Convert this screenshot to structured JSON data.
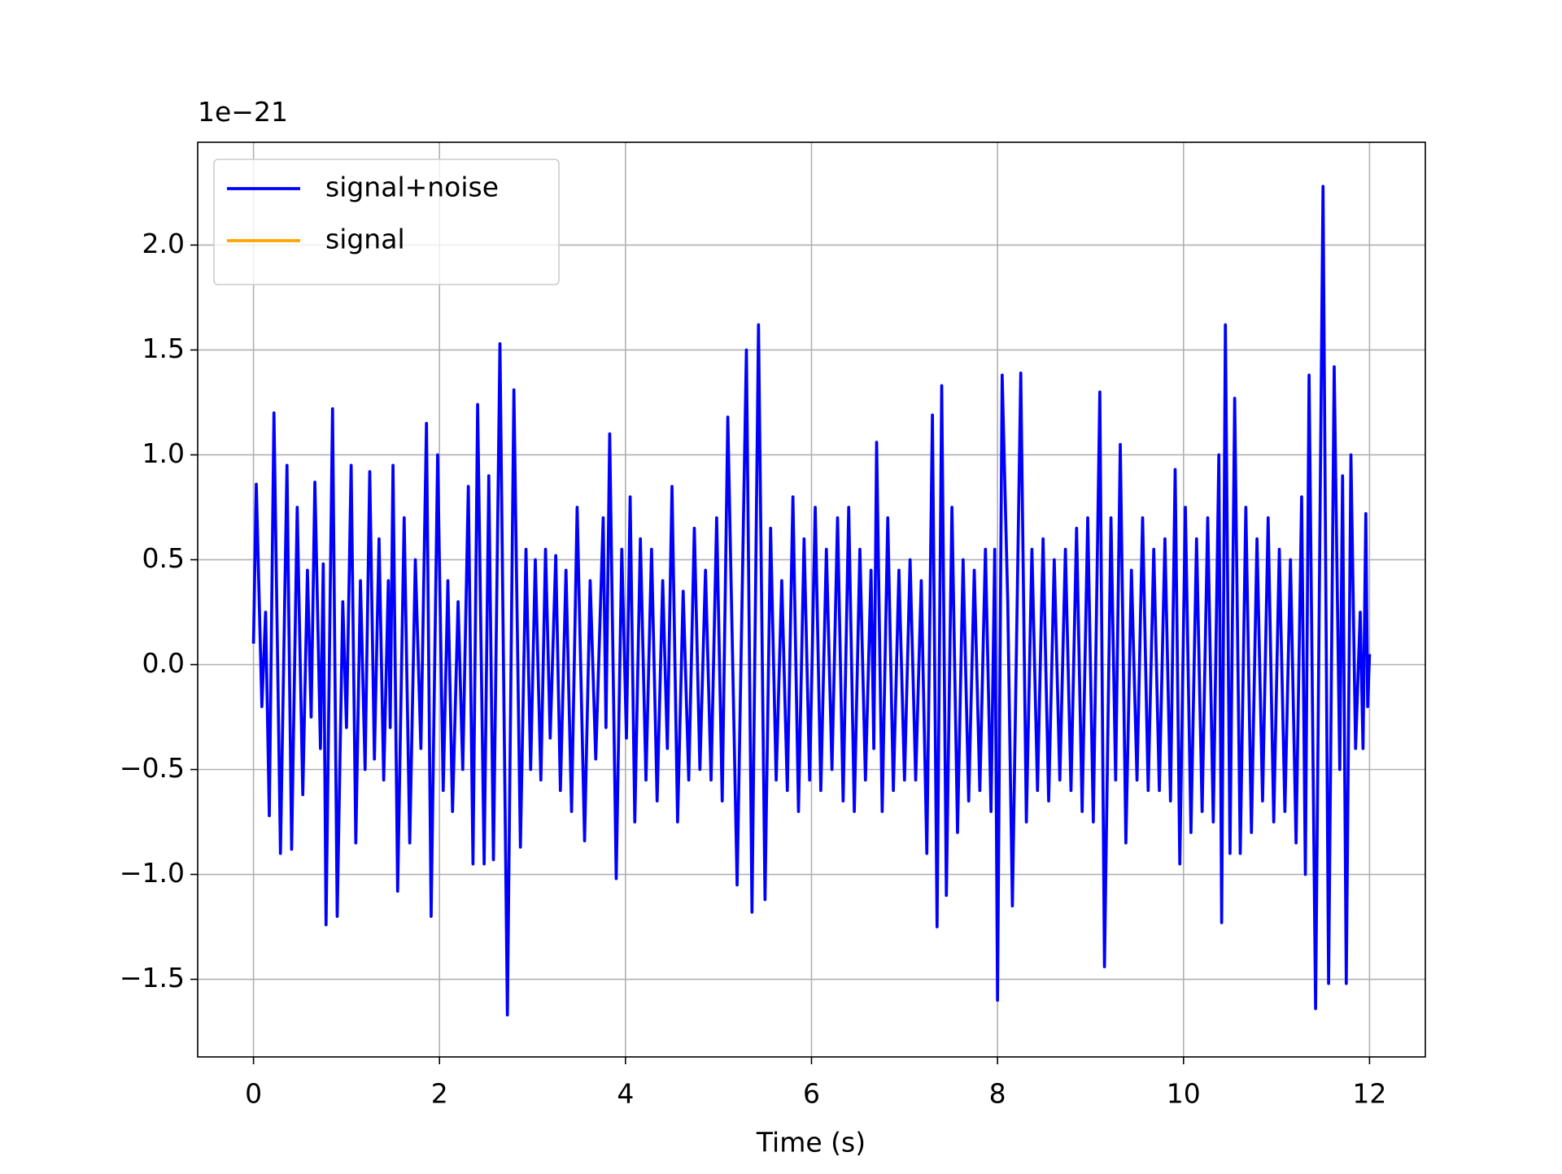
{
  "chart_data": {
    "type": "line",
    "offset_text": "1e−21",
    "xlabel": "Time (s)",
    "x": [
      0.0,
      0.03,
      0.09,
      0.13,
      0.17,
      0.22,
      0.29,
      0.36,
      0.41,
      0.47,
      0.53,
      0.58,
      0.62,
      0.66,
      0.72,
      0.75,
      0.78,
      0.85,
      0.9,
      0.96,
      1.0,
      1.05,
      1.1,
      1.15,
      1.2,
      1.25,
      1.3,
      1.35,
      1.4,
      1.45,
      1.47,
      1.5,
      1.55,
      1.62,
      1.68,
      1.74,
      1.8,
      1.86,
      1.91,
      1.98,
      2.04,
      2.09,
      2.14,
      2.2,
      2.25,
      2.31,
      2.36,
      2.41,
      2.48,
      2.53,
      2.58,
      2.65,
      2.73,
      2.8,
      2.87,
      2.93,
      2.98,
      3.03,
      3.09,
      3.14,
      3.19,
      3.25,
      3.3,
      3.36,
      3.42,
      3.48,
      3.56,
      3.62,
      3.68,
      3.76,
      3.79,
      3.83,
      3.9,
      3.96,
      4.01,
      4.05,
      4.1,
      4.16,
      4.22,
      4.28,
      4.34,
      4.4,
      4.45,
      4.5,
      4.56,
      4.62,
      4.68,
      4.74,
      4.8,
      4.86,
      4.92,
      4.98,
      5.04,
      5.1,
      5.2,
      5.3,
      5.36,
      5.43,
      5.5,
      5.56,
      5.62,
      5.68,
      5.74,
      5.8,
      5.86,
      5.92,
      5.98,
      6.04,
      6.1,
      6.16,
      6.22,
      6.28,
      6.34,
      6.4,
      6.46,
      6.52,
      6.58,
      6.64,
      6.67,
      6.7,
      6.76,
      6.82,
      6.88,
      6.94,
      7.0,
      7.06,
      7.12,
      7.18,
      7.24,
      7.3,
      7.35,
      7.4,
      7.45,
      7.51,
      7.57,
      7.63,
      7.69,
      7.75,
      7.81,
      7.87,
      7.93,
      7.97,
      8.0,
      8.05,
      8.11,
      8.16,
      8.25,
      8.31,
      8.37,
      8.43,
      8.49,
      8.55,
      8.61,
      8.67,
      8.73,
      8.79,
      8.85,
      8.91,
      8.97,
      9.03,
      9.1,
      9.15,
      9.22,
      9.27,
      9.32,
      9.38,
      9.44,
      9.5,
      9.56,
      9.62,
      9.68,
      9.74,
      9.8,
      9.86,
      9.91,
      9.96,
      10.02,
      10.08,
      10.14,
      10.2,
      10.26,
      10.32,
      10.38,
      10.41,
      10.45,
      10.5,
      10.55,
      10.61,
      10.67,
      10.73,
      10.79,
      10.85,
      10.91,
      10.97,
      11.03,
      11.09,
      11.15,
      11.21,
      11.27,
      11.31,
      11.35,
      11.42,
      11.5,
      11.56,
      11.62,
      11.68,
      11.71,
      11.75,
      11.8,
      11.85,
      11.9,
      11.93,
      11.96,
      11.98,
      12.0
    ],
    "series": [
      {
        "name": "signal+noise",
        "color": "#0000ff",
        "values": [
          0.1,
          0.86,
          -0.2,
          0.25,
          -0.72,
          1.2,
          -0.9,
          0.95,
          -0.88,
          0.75,
          -0.62,
          0.45,
          -0.25,
          0.87,
          -0.4,
          0.48,
          -1.24,
          1.22,
          -1.2,
          0.3,
          -0.3,
          0.95,
          -0.85,
          0.4,
          -0.5,
          0.92,
          -0.45,
          0.6,
          -0.55,
          0.4,
          -0.3,
          0.95,
          -1.08,
          0.7,
          -0.85,
          0.5,
          -0.4,
          1.15,
          -1.2,
          1.0,
          -0.6,
          0.4,
          -0.7,
          0.3,
          -0.5,
          0.85,
          -0.95,
          1.24,
          -0.95,
          0.9,
          -0.93,
          1.53,
          -1.67,
          1.31,
          -0.87,
          0.55,
          -0.5,
          0.5,
          -0.55,
          0.55,
          -0.35,
          0.52,
          -0.6,
          0.45,
          -0.7,
          0.75,
          -0.84,
          0.4,
          -0.45,
          0.7,
          -0.3,
          1.1,
          -1.02,
          0.55,
          -0.35,
          0.8,
          -0.75,
          0.6,
          -0.55,
          0.55,
          -0.65,
          0.4,
          -0.4,
          0.85,
          -0.75,
          0.35,
          -0.55,
          0.65,
          -0.5,
          0.45,
          -0.55,
          0.7,
          -0.65,
          1.18,
          -1.05,
          1.5,
          -1.18,
          1.62,
          -1.12,
          0.65,
          -0.55,
          0.4,
          -0.6,
          0.8,
          -0.7,
          0.6,
          -0.55,
          0.75,
          -0.6,
          0.55,
          -0.5,
          0.7,
          -0.65,
          0.75,
          -0.7,
          0.55,
          -0.55,
          0.45,
          -0.4,
          1.06,
          -0.7,
          0.7,
          -0.6,
          0.45,
          -0.55,
          0.5,
          -0.55,
          0.4,
          -0.9,
          1.19,
          -1.25,
          1.33,
          -1.1,
          0.75,
          -0.8,
          0.5,
          -0.65,
          0.45,
          -0.6,
          0.55,
          -0.7,
          0.55,
          -1.6,
          1.38,
          0.3,
          -1.15,
          1.39,
          -0.75,
          0.55,
          -0.6,
          0.6,
          -0.65,
          0.5,
          -0.55,
          0.55,
          -0.6,
          0.65,
          -0.7,
          0.7,
          -0.75,
          1.3,
          -1.44,
          0.7,
          -0.55,
          1.05,
          -0.85,
          0.45,
          -0.55,
          0.7,
          -0.6,
          0.55,
          -0.6,
          0.6,
          -0.65,
          0.93,
          -0.95,
          0.75,
          -0.8,
          0.6,
          -0.7,
          0.7,
          -0.75,
          1.0,
          -1.23,
          1.62,
          -0.9,
          1.27,
          -0.9,
          0.75,
          -0.8,
          0.6,
          -0.65,
          0.7,
          -0.75,
          0.55,
          -0.7,
          0.5,
          -0.85,
          0.8,
          -1.0,
          1.38,
          -1.64,
          2.28,
          -1.52,
          1.42,
          -0.5,
          0.9,
          -1.52,
          1.0,
          -0.4,
          0.25,
          -0.4,
          0.72,
          -0.2,
          0.05
        ]
      },
      {
        "name": "signal",
        "color": "#ffa500",
        "values": [
          null,
          null,
          null,
          null,
          null,
          null,
          null,
          null,
          null,
          null,
          null,
          null,
          null,
          null,
          null,
          null,
          null,
          null,
          null,
          null,
          null,
          null,
          null,
          null,
          null,
          null,
          null,
          null,
          null,
          null,
          null,
          null,
          null,
          null,
          null,
          null,
          null,
          null,
          null,
          null,
          null,
          null,
          null,
          null,
          null,
          null,
          null,
          null,
          null,
          null,
          null,
          null,
          null,
          null,
          null,
          null,
          null,
          null,
          null,
          null,
          null,
          null,
          null,
          null,
          null,
          null,
          null,
          null,
          null,
          null,
          null,
          null,
          null,
          null,
          null,
          null,
          null,
          null,
          null,
          null,
          null,
          null,
          null,
          null,
          null,
          null,
          null,
          null,
          null,
          null,
          null,
          null,
          null,
          null,
          null,
          null,
          null,
          null,
          null,
          null,
          null,
          null,
          null,
          null,
          null,
          null,
          null,
          null,
          null,
          null,
          null,
          null,
          null,
          null,
          null,
          null,
          null,
          null,
          null,
          null,
          null,
          null,
          null,
          null,
          null,
          null,
          null,
          null,
          null,
          null,
          null,
          null,
          null,
          null,
          null,
          null,
          null,
          null,
          null,
          null,
          null,
          null,
          null,
          null,
          null,
          null,
          null,
          null,
          null,
          null,
          null,
          null,
          null,
          null,
          null,
          null,
          null,
          null,
          null,
          null,
          null,
          null,
          null,
          null,
          null,
          null,
          null,
          null,
          null,
          null,
          null,
          null,
          null,
          null,
          null,
          null,
          null,
          null,
          null,
          null,
          null,
          null,
          null,
          null,
          null,
          null,
          null,
          null,
          null,
          null,
          null,
          null,
          null,
          null,
          null,
          null,
          null,
          null,
          null,
          null,
          null,
          null,
          null,
          null,
          null,
          null,
          null,
          null,
          null,
          null,
          null,
          null,
          null,
          null,
          null
        ]
      }
    ],
    "xlim": [
      -0.6,
      12.6
    ],
    "xticks": [
      0,
      2,
      4,
      6,
      8,
      10,
      12
    ],
    "ylim": [
      -1.87,
      2.49
    ],
    "yticks": [
      {
        "value": -1.5,
        "label": "−1.5"
      },
      {
        "value": -1,
        "label": "−1.0"
      },
      {
        "value": -0.5,
        "label": "−0.5"
      },
      {
        "value": 0,
        "label": "0.0"
      },
      0.5,
      {
        "value": 1,
        "label": "1.0"
      },
      1.5,
      {
        "value": 2,
        "label": "2.0"
      }
    ],
    "grid": true,
    "legend": "upper left"
  }
}
